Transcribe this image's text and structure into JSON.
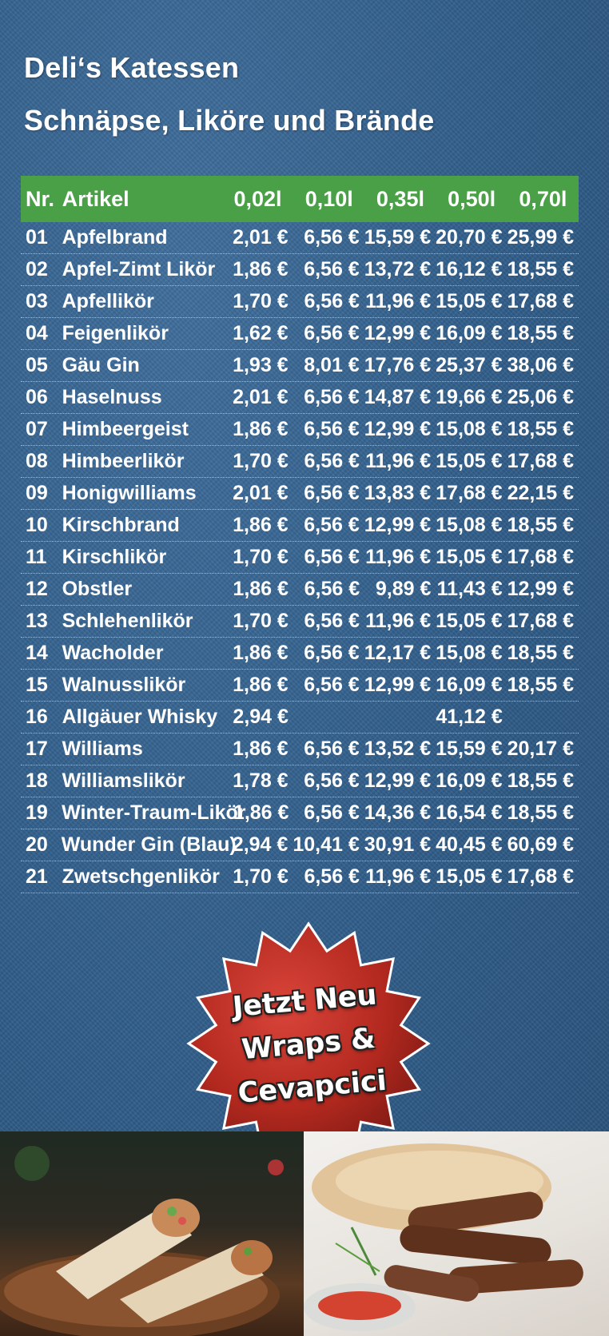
{
  "header": {
    "title_line1": "Deli‘s Katessen",
    "title_line2": "Schnäpse, Liköre und Brände"
  },
  "table": {
    "columns": [
      "Nr.",
      "Artikel",
      "0,02l",
      "0,10l",
      "0,35l",
      "0,50l",
      "0,70l"
    ],
    "rows": [
      {
        "nr": "01",
        "name": "Apfelbrand",
        "p1": "2,01 €",
        "p2": "6,56 €",
        "p3": "15,59 €",
        "p4": "20,70 €",
        "p5": "25,99 €"
      },
      {
        "nr": "02",
        "name": "Apfel-Zimt Likör",
        "p1": "1,86 €",
        "p2": "6,56 €",
        "p3": "13,72 €",
        "p4": "16,12 €",
        "p5": "18,55 €"
      },
      {
        "nr": "03",
        "name": "Apfellikör",
        "p1": "1,70 €",
        "p2": "6,56 €",
        "p3": "11,96 €",
        "p4": "15,05 €",
        "p5": "17,68 €"
      },
      {
        "nr": "04",
        "name": "Feigenlikör",
        "p1": "1,62 €",
        "p2": "6,56 €",
        "p3": "12,99 €",
        "p4": "16,09 €",
        "p5": "18,55 €"
      },
      {
        "nr": "05",
        "name": "Gäu Gin",
        "p1": "1,93 €",
        "p2": "8,01 €",
        "p3": "17,76 €",
        "p4": "25,37 €",
        "p5": "38,06 €"
      },
      {
        "nr": "06",
        "name": "Haselnuss",
        "p1": "2,01 €",
        "p2": "6,56 €",
        "p3": "14,87 €",
        "p4": "19,66 €",
        "p5": "25,06 €"
      },
      {
        "nr": "07",
        "name": "Himbeergeist",
        "p1": "1,86 €",
        "p2": "6,56 €",
        "p3": "12,99 €",
        "p4": "15,08 €",
        "p5": "18,55 €"
      },
      {
        "nr": "08",
        "name": "Himbeerlikör",
        "p1": "1,70 €",
        "p2": "6,56 €",
        "p3": "11,96 €",
        "p4": "15,05 €",
        "p5": "17,68 €"
      },
      {
        "nr": "09",
        "name": "Honigwilliams",
        "p1": "2,01 €",
        "p2": "6,56 €",
        "p3": "13,83 €",
        "p4": "17,68 €",
        "p5": "22,15 €"
      },
      {
        "nr": "10",
        "name": "Kirschbrand",
        "p1": "1,86 €",
        "p2": "6,56 €",
        "p3": "12,99 €",
        "p4": "15,08 €",
        "p5": "18,55 €"
      },
      {
        "nr": "11",
        "name": "Kirschlikör",
        "p1": "1,70 €",
        "p2": "6,56 €",
        "p3": "11,96 €",
        "p4": "15,05 €",
        "p5": "17,68 €"
      },
      {
        "nr": "12",
        "name": "Obstler",
        "p1": "1,86 €",
        "p2": "6,56 €",
        "p3": "9,89 €",
        "p4": "11,43 €",
        "p5": "12,99 €"
      },
      {
        "nr": "13",
        "name": "Schlehenlikör",
        "p1": "1,70 €",
        "p2": "6,56 €",
        "p3": "11,96 €",
        "p4": "15,05 €",
        "p5": "17,68 €"
      },
      {
        "nr": "14",
        "name": "Wacholder",
        "p1": "1,86 €",
        "p2": "6,56 €",
        "p3": "12,17 €",
        "p4": "15,08 €",
        "p5": "18,55 €"
      },
      {
        "nr": "15",
        "name": "Walnusslikör",
        "p1": "1,86 €",
        "p2": "6,56 €",
        "p3": "12,99 €",
        "p4": "16,09 €",
        "p5": "18,55 €"
      },
      {
        "nr": "16",
        "name": "Allgäuer Whisky",
        "p1": "2,94 €",
        "p2": "",
        "p3": "",
        "p4": "41,12 €",
        "p5": ""
      },
      {
        "nr": "17",
        "name": "Williams",
        "p1": "1,86 €",
        "p2": "6,56 €",
        "p3": "13,52 €",
        "p4": "15,59 €",
        "p5": "20,17 €"
      },
      {
        "nr": "18",
        "name": "Williamslikör",
        "p1": "1,78 €",
        "p2": "6,56 €",
        "p3": "12,99 €",
        "p4": "16,09 €",
        "p5": "18,55 €"
      },
      {
        "nr": "19",
        "name": "Winter-Traum-Likör",
        "p1": "1,86 €",
        "p2": "6,56 €",
        "p3": "14,36 €",
        "p4": "16,54 €",
        "p5": "18,55 €"
      },
      {
        "nr": "20",
        "name": "Wunder Gin (Blau)",
        "p1": "2,94 €",
        "p2": "10,41 €",
        "p3": "30,91 €",
        "p4": "40,45 €",
        "p5": "60,69 €"
      },
      {
        "nr": "21",
        "name": "Zwetschgenlikör",
        "p1": "1,70 €",
        "p2": "6,56 €",
        "p3": "11,96 €",
        "p4": "15,05 €",
        "p5": "17,68 €"
      }
    ]
  },
  "promo": {
    "line1": "Jetzt Neu",
    "line2": "Wraps &",
    "line3": "Cevapcici"
  },
  "colors": {
    "background": "#2f5c88",
    "header_green": "#4aa046",
    "badge_red": "#b8302a"
  },
  "images": {
    "left": "wrap-photo",
    "right": "cevapcici-photo"
  }
}
